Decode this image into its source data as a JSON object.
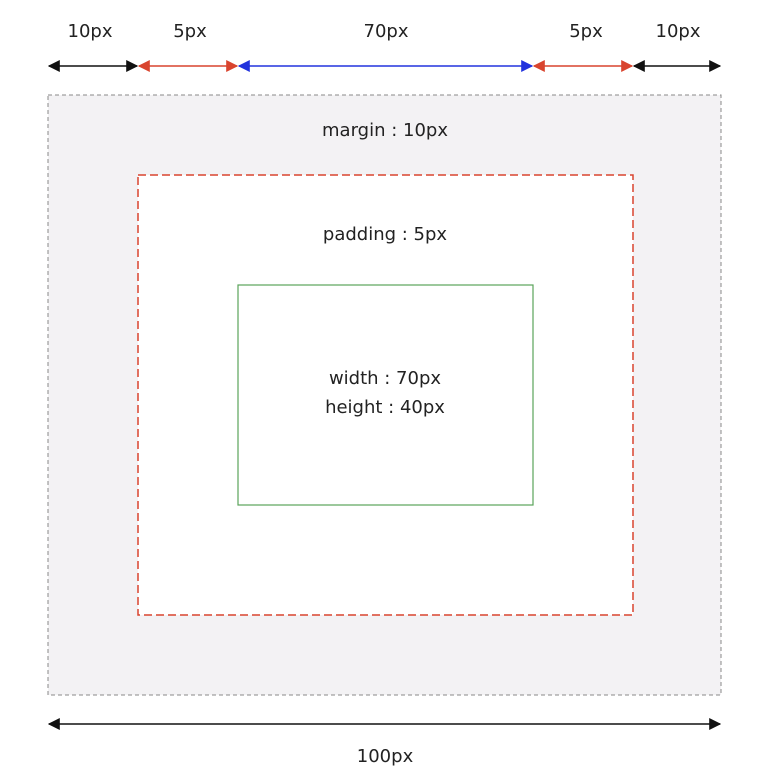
{
  "top_labels": [
    "10px",
    "5px",
    "70px",
    "5px",
    "10px"
  ],
  "margin_label": "margin : 10px",
  "padding_label": "padding : 5px",
  "content_labels": [
    "width : 70px",
    "height : 40px"
  ],
  "total_label": "100px"
}
